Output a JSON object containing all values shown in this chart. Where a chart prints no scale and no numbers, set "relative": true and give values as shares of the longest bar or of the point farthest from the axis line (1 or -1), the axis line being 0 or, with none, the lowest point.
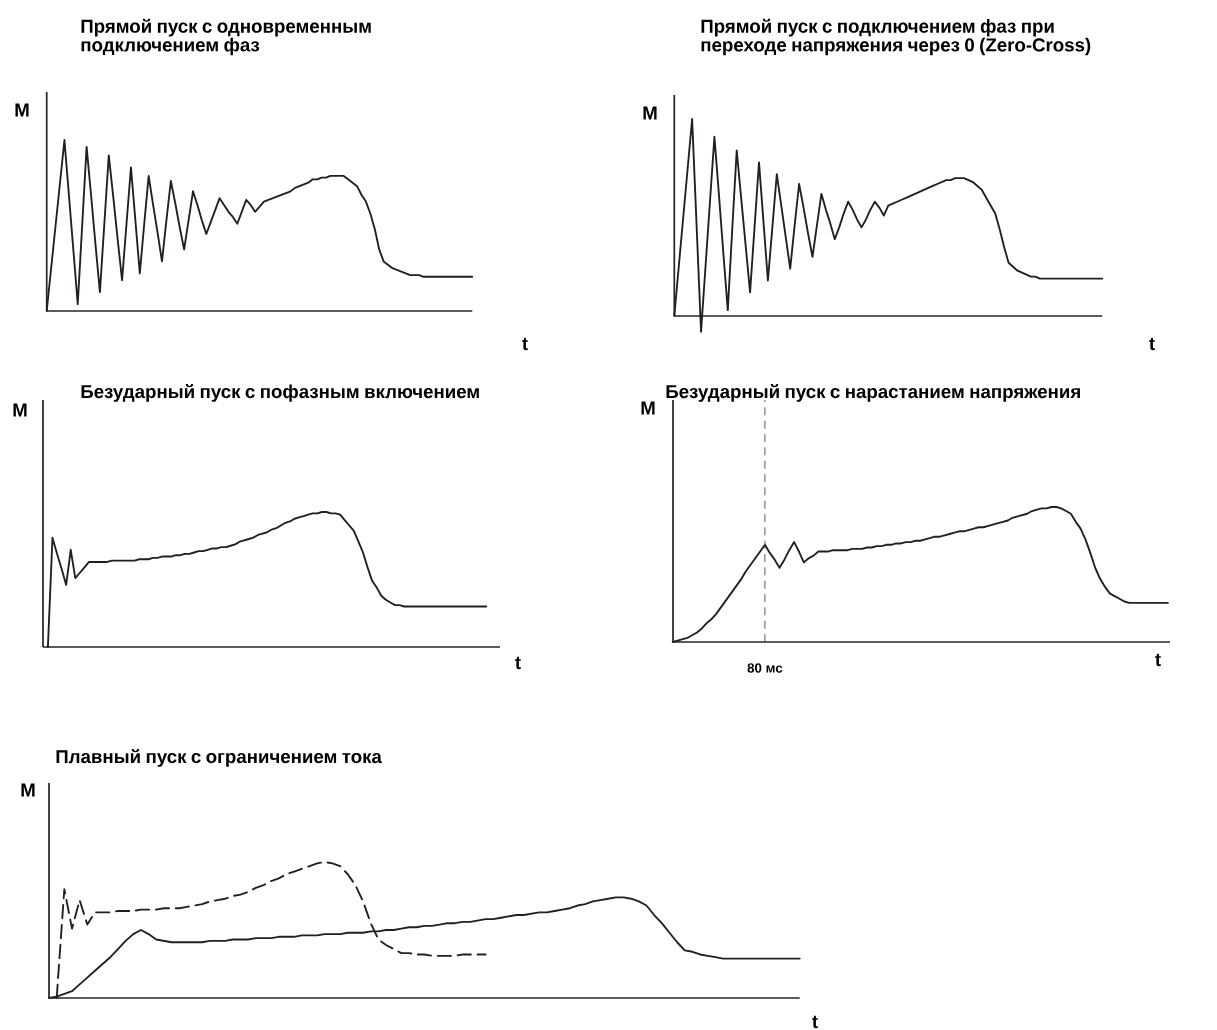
{
  "chart_data": [
    {
      "type": "line",
      "title": "Прямой пуск с одновременным подключением фаз",
      "xlabel": "t",
      "ylabel": "M",
      "relative": true,
      "categories": [
        null,
        null,
        null,
        null,
        null,
        null,
        null,
        null,
        null,
        null,
        null,
        null,
        null,
        null,
        null,
        null,
        null,
        null,
        null,
        null,
        null,
        null,
        null,
        null,
        null,
        null,
        null,
        null,
        null,
        null,
        null,
        null,
        null,
        null,
        null,
        null,
        null,
        null,
        null,
        null,
        null,
        null,
        null,
        null,
        null,
        null,
        null,
        null,
        null,
        null,
        null,
        null,
        null,
        null,
        null,
        null,
        null,
        null,
        null,
        null,
        null,
        null,
        null,
        null,
        null,
        null,
        null,
        null,
        null,
        null,
        null,
        null,
        null,
        null,
        null,
        null,
        null,
        null,
        null,
        null,
        null,
        null,
        null,
        null,
        null,
        null,
        null,
        null,
        null,
        null,
        null,
        null,
        null,
        null,
        null,
        null,
        null
      ],
      "series": [
        {
          "color": "#231f20",
          "values": [
            0,
            0.25,
            0.5,
            0.75,
            1.0,
            0.68,
            0.36,
            0.04,
            0.5,
            0.96,
            0.68,
            0.39,
            0.11,
            0.51,
            0.91,
            0.67,
            0.42,
            0.18,
            0.51,
            0.84,
            0.53,
            0.22,
            0.51,
            0.79,
            0.62,
            0.46,
            0.29,
            0.53,
            0.76,
            0.63,
            0.49,
            0.36,
            0.53,
            0.7,
            0.62,
            0.53,
            0.45,
            0.52,
            0.59,
            0.66,
            0.62,
            0.58,
            0.55,
            0.51,
            0.58,
            0.65,
            0.62,
            0.58,
            0.61,
            0.64,
            0.65,
            0.66,
            0.67,
            0.68,
            0.69,
            0.7,
            0.72,
            0.73,
            0.74,
            0.75,
            0.77,
            0.77,
            0.78,
            0.78,
            0.79,
            0.79,
            0.79,
            0.79,
            0.77,
            0.75,
            0.73,
            0.68,
            0.64,
            0.57,
            0.48,
            0.36,
            0.29,
            0.27,
            0.25,
            0.24,
            0.23,
            0.22,
            0.21,
            0.21,
            0.21,
            0.2,
            0.2,
            0.2,
            0.2,
            0.2,
            0.2,
            0.2,
            0.2,
            0.2,
            0.2,
            0.2,
            0.2
          ]
        }
      ]
    },
    {
      "type": "line",
      "title": "Прямой пуск с подключением фаз при переходе напряжения через 0 (Zero-Cross)",
      "xlabel": "t",
      "ylabel": "M",
      "relative": true,
      "categories": [
        null,
        null,
        null,
        null,
        null,
        null,
        null,
        null,
        null,
        null,
        null,
        null,
        null,
        null,
        null,
        null,
        null,
        null,
        null,
        null,
        null,
        null,
        null,
        null,
        null,
        null,
        null,
        null,
        null,
        null,
        null,
        null,
        null,
        null,
        null,
        null,
        null,
        null,
        null,
        null,
        null,
        null,
        null,
        null,
        null,
        null,
        null,
        null,
        null,
        null,
        null,
        null,
        null,
        null,
        null,
        null,
        null,
        null,
        null,
        null,
        null,
        null,
        null,
        null,
        null,
        null,
        null,
        null,
        null,
        null,
        null,
        null,
        null,
        null,
        null,
        null,
        null,
        null,
        null,
        null,
        null,
        null,
        null,
        null,
        null,
        null,
        null,
        null,
        null,
        null,
        null,
        null,
        null,
        null,
        null,
        null,
        null
      ],
      "series": [
        {
          "color": "#231f20",
          "values": [
            0,
            0.25,
            0.5,
            0.75,
            1.0,
            0.46,
            -0.08,
            0.25,
            0.58,
            0.91,
            0.62,
            0.32,
            0.03,
            0.44,
            0.84,
            0.6,
            0.36,
            0.12,
            0.45,
            0.78,
            0.48,
            0.18,
            0.45,
            0.72,
            0.56,
            0.4,
            0.24,
            0.46,
            0.67,
            0.55,
            0.42,
            0.3,
            0.46,
            0.62,
            0.54,
            0.47,
            0.39,
            0.45,
            0.52,
            0.58,
            0.54,
            0.49,
            0.45,
            0.49,
            0.54,
            0.58,
            0.55,
            0.51,
            0.56,
            0.57,
            0.58,
            0.59,
            0.6,
            0.61,
            0.62,
            0.63,
            0.64,
            0.65,
            0.66,
            0.67,
            0.68,
            0.69,
            0.69,
            0.7,
            0.7,
            0.7,
            0.69,
            0.68,
            0.66,
            0.64,
            0.6,
            0.56,
            0.52,
            0.44,
            0.35,
            0.27,
            0.25,
            0.23,
            0.22,
            0.21,
            0.2,
            0.2,
            0.19,
            0.19,
            0.19,
            0.19,
            0.19,
            0.19,
            0.19,
            0.19,
            0.19,
            0.19,
            0.19,
            0.19,
            0.19,
            0.19,
            0.19
          ]
        }
      ]
    },
    {
      "type": "line",
      "title": "Безударный пуск с пофазным включением",
      "xlabel": "t",
      "ylabel": "M",
      "relative": true,
      "categories": [
        null,
        null,
        null,
        null,
        null,
        null,
        null,
        null,
        null,
        null,
        null,
        null,
        null,
        null,
        null,
        null,
        null,
        null,
        null,
        null,
        null,
        null,
        null,
        null,
        null,
        null,
        null,
        null,
        null,
        null,
        null,
        null,
        null,
        null,
        null,
        null,
        null,
        null,
        null,
        null,
        null,
        null,
        null,
        null,
        null,
        null,
        null,
        null,
        null,
        null,
        null,
        null,
        null,
        null,
        null,
        null,
        null,
        null,
        null,
        null,
        null,
        null,
        null,
        null,
        null,
        null,
        null,
        null,
        null,
        null,
        null,
        null,
        null,
        null,
        null,
        null,
        null,
        null,
        null,
        null,
        null,
        null,
        null,
        null,
        null,
        null,
        null,
        null,
        null,
        null,
        null,
        null,
        null,
        null,
        null,
        null,
        null
      ],
      "series": [
        {
          "color": "#231f20",
          "values": [
            0,
            0.81,
            0.69,
            0.58,
            0.46,
            0.72,
            0.51,
            0.55,
            0.59,
            0.63,
            0.63,
            0.63,
            0.63,
            0.63,
            0.64,
            0.64,
            0.64,
            0.64,
            0.64,
            0.64,
            0.65,
            0.65,
            0.65,
            0.66,
            0.66,
            0.67,
            0.67,
            0.67,
            0.68,
            0.68,
            0.69,
            0.69,
            0.7,
            0.71,
            0.71,
            0.72,
            0.73,
            0.73,
            0.74,
            0.74,
            0.75,
            0.76,
            0.78,
            0.79,
            0.8,
            0.81,
            0.83,
            0.84,
            0.85,
            0.87,
            0.88,
            0.9,
            0.92,
            0.93,
            0.95,
            0.96,
            0.97,
            0.98,
            0.99,
            0.99,
            1.0,
            1.0,
            0.99,
            0.99,
            0.98,
            0.94,
            0.9,
            0.86,
            0.78,
            0.7,
            0.59,
            0.49,
            0.44,
            0.38,
            0.35,
            0.33,
            0.31,
            0.31,
            0.3,
            0.3,
            0.3,
            0.3,
            0.3,
            0.3,
            0.3,
            0.3,
            0.3,
            0.3,
            0.3,
            0.3,
            0.3,
            0.3,
            0.3,
            0.3,
            0.3,
            0.3,
            0.3
          ]
        }
      ]
    },
    {
      "type": "line",
      "title": "Безударный пуск с нарастанием напряжения",
      "xlabel": "t",
      "ylabel": "M",
      "relative": true,
      "annotations": [
        "80 мс"
      ],
      "categories": [
        null,
        null,
        null,
        null,
        null,
        null,
        null,
        null,
        null,
        null,
        null,
        null,
        null,
        null,
        null,
        null,
        null,
        null,
        null,
        null,
        null,
        null,
        null,
        null,
        null,
        null,
        null,
        null,
        null,
        null,
        null,
        null,
        null,
        null,
        null,
        null,
        null,
        null,
        null,
        null,
        null,
        null,
        null,
        null,
        null,
        null,
        null,
        null,
        null,
        null,
        null,
        null,
        null,
        null,
        null,
        null,
        null,
        null,
        null,
        null,
        null,
        null,
        null,
        null,
        null,
        null,
        null,
        null,
        null,
        null,
        null,
        null,
        null,
        null,
        null,
        null,
        null,
        null,
        null,
        null,
        null,
        null,
        null,
        null,
        null,
        null,
        null,
        null,
        null,
        null,
        null,
        null,
        null,
        null,
        null,
        null,
        null,
        null,
        null,
        null,
        null,
        null,
        null
      ],
      "series": [
        {
          "color": "#231f20",
          "values": [
            0,
            0.01,
            0.02,
            0.03,
            0.05,
            0.07,
            0.1,
            0.14,
            0.17,
            0.21,
            0.26,
            0.31,
            0.36,
            0.41,
            0.46,
            0.52,
            0.57,
            0.62,
            0.67,
            0.72,
            0.66,
            0.61,
            0.55,
            0.61,
            0.68,
            0.74,
            0.67,
            0.59,
            0.62,
            0.64,
            0.67,
            0.67,
            0.67,
            0.68,
            0.68,
            0.68,
            0.68,
            0.69,
            0.69,
            0.69,
            0.7,
            0.7,
            0.71,
            0.71,
            0.72,
            0.72,
            0.73,
            0.73,
            0.74,
            0.74,
            0.75,
            0.75,
            0.76,
            0.77,
            0.78,
            0.78,
            0.79,
            0.8,
            0.81,
            0.82,
            0.82,
            0.83,
            0.84,
            0.85,
            0.85,
            0.86,
            0.87,
            0.88,
            0.89,
            0.9,
            0.92,
            0.93,
            0.94,
            0.95,
            0.97,
            0.98,
            0.99,
            0.99,
            1.0,
            1.0,
            0.99,
            0.97,
            0.95,
            0.89,
            0.84,
            0.76,
            0.66,
            0.55,
            0.47,
            0.41,
            0.36,
            0.34,
            0.32,
            0.3,
            0.29,
            0.29,
            0.29,
            0.29,
            0.29,
            0.29,
            0.29,
            0.29,
            0.29
          ]
        }
      ]
    },
    {
      "type": "line",
      "title": "Плавный пуск с ограничением тока",
      "xlabel": "t",
      "ylabel": "M",
      "relative": true,
      "categories": [
        null,
        null,
        null,
        null,
        null,
        null,
        null,
        null,
        null,
        null,
        null,
        null,
        null,
        null,
        null,
        null,
        null,
        null,
        null,
        null,
        null,
        null,
        null,
        null,
        null,
        null,
        null,
        null,
        null,
        null,
        null,
        null,
        null,
        null,
        null,
        null,
        null,
        null,
        null,
        null,
        null,
        null,
        null,
        null,
        null,
        null,
        null,
        null,
        null,
        null,
        null,
        null,
        null,
        null,
        null,
        null,
        null,
        null,
        null,
        null,
        null,
        null,
        null,
        null,
        null,
        null,
        null,
        null,
        null,
        null,
        null,
        null,
        null,
        null,
        null,
        null,
        null,
        null,
        null,
        null,
        null,
        null,
        null,
        null,
        null,
        null,
        null,
        null,
        null,
        null,
        null,
        null,
        null,
        null,
        null,
        null,
        null,
        null,
        null
      ],
      "series": [
        {
          "color": "#231f20",
          "line_style": "solid",
          "values": [
            0,
            0.01,
            0.03,
            0.05,
            0.1,
            0.15,
            0.2,
            0.25,
            0.3,
            0.36,
            0.42,
            0.47,
            0.5,
            0.47,
            0.43,
            0.42,
            0.41,
            0.41,
            0.41,
            0.41,
            0.41,
            0.42,
            0.42,
            0.42,
            0.43,
            0.43,
            0.43,
            0.44,
            0.44,
            0.44,
            0.45,
            0.45,
            0.45,
            0.46,
            0.46,
            0.46,
            0.47,
            0.47,
            0.47,
            0.48,
            0.48,
            0.48,
            0.49,
            0.49,
            0.5,
            0.5,
            0.51,
            0.52,
            0.52,
            0.53,
            0.53,
            0.54,
            0.55,
            0.55,
            0.56,
            0.56,
            0.57,
            0.58,
            0.58,
            0.59,
            0.6,
            0.61,
            0.61,
            0.62,
            0.63,
            0.63,
            0.64,
            0.65,
            0.66,
            0.68,
            0.69,
            0.71,
            0.72,
            0.73,
            0.74,
            0.74,
            0.73,
            0.71,
            0.68,
            0.61,
            0.55,
            0.48,
            0.41,
            0.35,
            0.34,
            0.32,
            0.31,
            0.3,
            0.29,
            0.29,
            0.29,
            0.29,
            0.29,
            0.29,
            0.29,
            0.29,
            0.29,
            0.29,
            0.29
          ]
        },
        {
          "color": "#231f20",
          "line_style": "dashed",
          "values": [
            null,
            0,
            0.8,
            0.51,
            0.72,
            0.54,
            0.63,
            0.63,
            0.63,
            0.64,
            0.64,
            0.64,
            0.65,
            0.65,
            0.65,
            0.66,
            0.66,
            0.66,
            0.67,
            0.68,
            0.69,
            0.71,
            0.72,
            0.73,
            0.75,
            0.76,
            0.78,
            0.81,
            0.83,
            0.86,
            0.88,
            0.91,
            0.93,
            0.95,
            0.97,
            0.99,
            1.0,
            0.99,
            0.97,
            0.91,
            0.83,
            0.71,
            0.55,
            0.43,
            0.39,
            0.36,
            0.33,
            0.33,
            0.32,
            0.32,
            0.31,
            0.31,
            0.31,
            0.31,
            0.32,
            0.32,
            0.32,
            0.32,
            null,
            null,
            null,
            null,
            null,
            null,
            null,
            null,
            null,
            null,
            null,
            null,
            null,
            null,
            null,
            null,
            null,
            null,
            null,
            null,
            null,
            null,
            null,
            null,
            null,
            null,
            null,
            null,
            null,
            null,
            null,
            null,
            null,
            null,
            null,
            null,
            null,
            null,
            null,
            null,
            null
          ]
        }
      ]
    }
  ]
}
